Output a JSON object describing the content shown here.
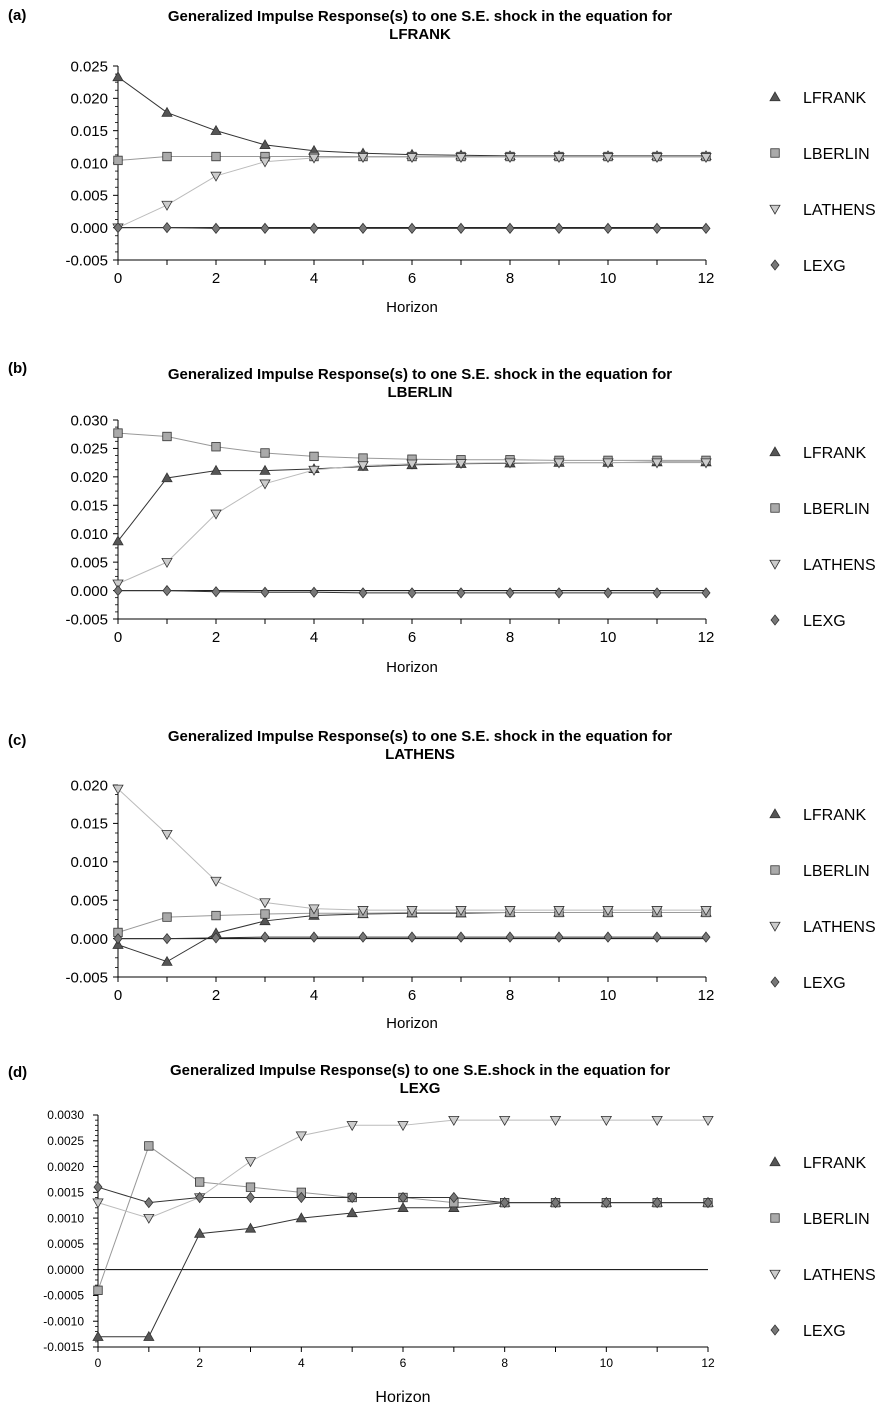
{
  "chart_data": [
    {
      "type": "line",
      "panel_label": "(a)",
      "title_line1": "Generalized Impulse Response(s) to one S.E. shock in the equation for",
      "title_line2": "LFRANK",
      "xlabel": "Horizon",
      "x": [
        0,
        1,
        2,
        3,
        4,
        5,
        6,
        7,
        8,
        9,
        10,
        11,
        12
      ],
      "xticks": [
        "0",
        "2",
        "4",
        "6",
        "8",
        "10",
        "12"
      ],
      "ylim": [
        -0.005,
        0.025
      ],
      "yticks": [
        "0.025",
        "0.020",
        "0.015",
        "0.010",
        "0.005",
        "0.000",
        "-0.005"
      ],
      "series": [
        {
          "name": "LFRANK",
          "marker": "triangle-up",
          "color": "#555555",
          "values": [
            0.0233,
            0.0178,
            0.015,
            0.0128,
            0.0119,
            0.0115,
            0.0113,
            0.0112,
            0.0111,
            0.0111,
            0.0111,
            0.0111,
            0.0111
          ]
        },
        {
          "name": "LBERLIN",
          "marker": "square",
          "color": "#aaaaaa",
          "values": [
            0.0104,
            0.011,
            0.011,
            0.011,
            0.011,
            0.011,
            0.011,
            0.011,
            0.011,
            0.011,
            0.011,
            0.011,
            0.011
          ]
        },
        {
          "name": "LATHENS",
          "marker": "triangle-down",
          "color": "#cccccc",
          "values": [
            0.0,
            0.0035,
            0.008,
            0.0102,
            0.0108,
            0.0109,
            0.0109,
            0.0109,
            0.0109,
            0.0109,
            0.0109,
            0.0109,
            0.0109
          ]
        },
        {
          "name": "LEXG",
          "marker": "diamond",
          "color": "#777777",
          "values": [
            0.0,
            0.0,
            -0.0001,
            -0.0001,
            -0.0001,
            -0.0001,
            -0.0001,
            -0.0001,
            -0.0001,
            -0.0001,
            -0.0001,
            -0.0001,
            -0.0001
          ]
        }
      ]
    },
    {
      "type": "line",
      "panel_label": "(b)",
      "title_line1": "Generalized Impulse Response(s) to one S.E. shock in the equation for",
      "title_line2": "LBERLIN",
      "xlabel": "Horizon",
      "x": [
        0,
        1,
        2,
        3,
        4,
        5,
        6,
        7,
        8,
        9,
        10,
        11,
        12
      ],
      "xticks": [
        "0",
        "2",
        "4",
        "6",
        "8",
        "10",
        "12"
      ],
      "ylim": [
        -0.005,
        0.03
      ],
      "yticks": [
        "0.030",
        "0.025",
        "0.020",
        "0.015",
        "0.010",
        "0.005",
        "0.000",
        "-0.005"
      ],
      "series": [
        {
          "name": "LFRANK",
          "marker": "triangle-up",
          "color": "#555555",
          "values": [
            0.0087,
            0.0198,
            0.0211,
            0.0211,
            0.0214,
            0.0218,
            0.0221,
            0.0223,
            0.0224,
            0.0225,
            0.0225,
            0.0226,
            0.0226
          ]
        },
        {
          "name": "LBERLIN",
          "marker": "square",
          "color": "#aaaaaa",
          "values": [
            0.0277,
            0.0271,
            0.0253,
            0.0242,
            0.0236,
            0.0233,
            0.0231,
            0.023,
            0.023,
            0.0229,
            0.0229,
            0.0229,
            0.0229
          ]
        },
        {
          "name": "LATHENS",
          "marker": "triangle-down",
          "color": "#cccccc",
          "values": [
            0.0012,
            0.005,
            0.0135,
            0.0188,
            0.0212,
            0.022,
            0.0223,
            0.0224,
            0.0225,
            0.0225,
            0.0225,
            0.0225,
            0.0225
          ]
        },
        {
          "name": "LEXG",
          "marker": "diamond",
          "color": "#777777",
          "values": [
            0.0,
            0.0,
            -0.0002,
            -0.0003,
            -0.0003,
            -0.0004,
            -0.0004,
            -0.0004,
            -0.0004,
            -0.0004,
            -0.0004,
            -0.0004,
            -0.0004
          ]
        }
      ]
    },
    {
      "type": "line",
      "panel_label": "(c)",
      "title_line1": "Generalized Impulse Response(s) to one S.E. shock in the equation for",
      "title_line2": "LATHENS",
      "xlabel": "Horizon",
      "x": [
        0,
        1,
        2,
        3,
        4,
        5,
        6,
        7,
        8,
        9,
        10,
        11,
        12
      ],
      "xticks": [
        "0",
        "2",
        "4",
        "6",
        "8",
        "10",
        "12"
      ],
      "ylim": [
        -0.005,
        0.02
      ],
      "yticks": [
        "0.020",
        "0.015",
        "0.010",
        "0.005",
        "0.000",
        "-0.005"
      ],
      "series": [
        {
          "name": "LFRANK",
          "marker": "triangle-up",
          "color": "#555555",
          "values": [
            -0.0008,
            -0.003,
            0.0007,
            0.0023,
            0.003,
            0.0032,
            0.0033,
            0.0033,
            0.0034,
            0.0034,
            0.0034,
            0.0034,
            0.0034
          ]
        },
        {
          "name": "LBERLIN",
          "marker": "square",
          "color": "#aaaaaa",
          "values": [
            0.0008,
            0.0028,
            0.003,
            0.0032,
            0.0033,
            0.0033,
            0.0034,
            0.0034,
            0.0034,
            0.0034,
            0.0034,
            0.0034,
            0.0034
          ]
        },
        {
          "name": "LATHENS",
          "marker": "triangle-down",
          "color": "#cccccc",
          "values": [
            0.0195,
            0.0136,
            0.0075,
            0.0047,
            0.0039,
            0.0037,
            0.0037,
            0.0037,
            0.0037,
            0.0037,
            0.0037,
            0.0037,
            0.0037
          ]
        },
        {
          "name": "LEXG",
          "marker": "diamond",
          "color": "#777777",
          "values": [
            0.0,
            0.0,
            0.0001,
            0.0002,
            0.0002,
            0.0002,
            0.0002,
            0.0002,
            0.0002,
            0.0002,
            0.0002,
            0.0002,
            0.0002
          ]
        }
      ]
    },
    {
      "type": "line",
      "panel_label": "(d)",
      "title_line1": "Generalized Impulse Response(s) to one S.E.shock in the equation for",
      "title_line2": "LEXG",
      "xlabel": "Horizon",
      "x": [
        0,
        1,
        2,
        3,
        4,
        5,
        6,
        7,
        8,
        9,
        10,
        11,
        12
      ],
      "xticks": [
        "0",
        "2",
        "4",
        "6",
        "8",
        "10",
        "12"
      ],
      "ylim": [
        -0.0015,
        0.003
      ],
      "yticks": [
        "0.0030",
        "0.0025",
        "0.0020",
        "0.0015",
        "0.0010",
        "0.0005",
        "0.0000",
        "-0.0005",
        "-0.0010",
        "-0.0015"
      ],
      "series": [
        {
          "name": "LFRANK",
          "marker": "triangle-up",
          "color": "#555555",
          "values": [
            -0.0013,
            -0.0013,
            0.0007,
            0.0008,
            0.001,
            0.0011,
            0.0012,
            0.0012,
            0.0013,
            0.0013,
            0.0013,
            0.0013,
            0.0013
          ]
        },
        {
          "name": "LBERLIN",
          "marker": "square",
          "color": "#aaaaaa",
          "values": [
            -0.0004,
            0.0024,
            0.0017,
            0.0016,
            0.0015,
            0.0014,
            0.0014,
            0.0013,
            0.0013,
            0.0013,
            0.0013,
            0.0013,
            0.0013
          ]
        },
        {
          "name": "LATHENS",
          "marker": "triangle-down",
          "color": "#cccccc",
          "values": [
            0.0013,
            0.001,
            0.0014,
            0.0021,
            0.0026,
            0.0028,
            0.0028,
            0.0029,
            0.0029,
            0.0029,
            0.0029,
            0.0029,
            0.0029
          ]
        },
        {
          "name": "LEXG",
          "marker": "diamond",
          "color": "#777777",
          "values": [
            0.0016,
            0.0013,
            0.0014,
            0.0014,
            0.0014,
            0.0014,
            0.0014,
            0.0014,
            0.0013,
            0.0013,
            0.0013,
            0.0013,
            0.0013
          ]
        }
      ]
    }
  ]
}
